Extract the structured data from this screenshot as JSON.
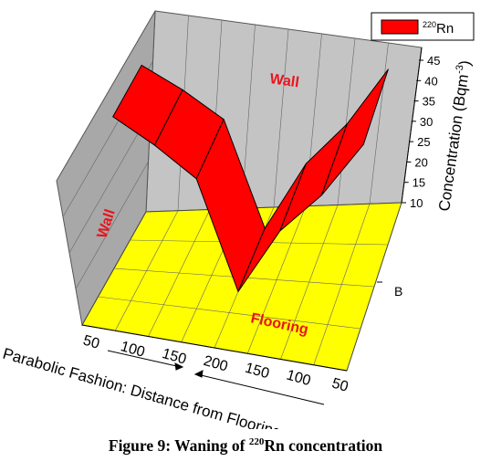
{
  "chart_data": {
    "type": "area",
    "title": "",
    "series": [
      {
        "name": "220Rn",
        "color": "#ff0000",
        "x": [
          50,
          100,
          150,
          200,
          150,
          100,
          50
        ],
        "values": [
          43,
          38,
          32,
          10,
          23,
          31,
          42
        ]
      }
    ],
    "x_tick_labels": [
      "50",
      "100",
      "150",
      "200",
      "150",
      "100",
      "50"
    ],
    "xlabel": "Parabolic Fashion: Distance from Flooring",
    "zlabel": "Concentration (Bqm",
    "zlabel_sup": "-3",
    "zlabel_close": ")",
    "z_ticks": [
      "10",
      "15",
      "20",
      "25",
      "30",
      "35",
      "40",
      "45"
    ],
    "zlim": [
      10,
      45
    ],
    "y_tick_label": "B",
    "grid": true,
    "legend": {
      "position": "top-right",
      "label_sup": "220",
      "label": "Rn"
    },
    "annotations": {
      "wall_back": "Wall",
      "wall_left": "Wall",
      "floor": "Flooring"
    },
    "colors": {
      "floor": "#ffff00",
      "walls": "#c0c0c0",
      "series": "#ff0000",
      "annotation": "#e8141e"
    }
  },
  "caption": {
    "prefix": "Figure 9: Waning of ",
    "sup": "220",
    "suffix": "Rn concentration"
  }
}
